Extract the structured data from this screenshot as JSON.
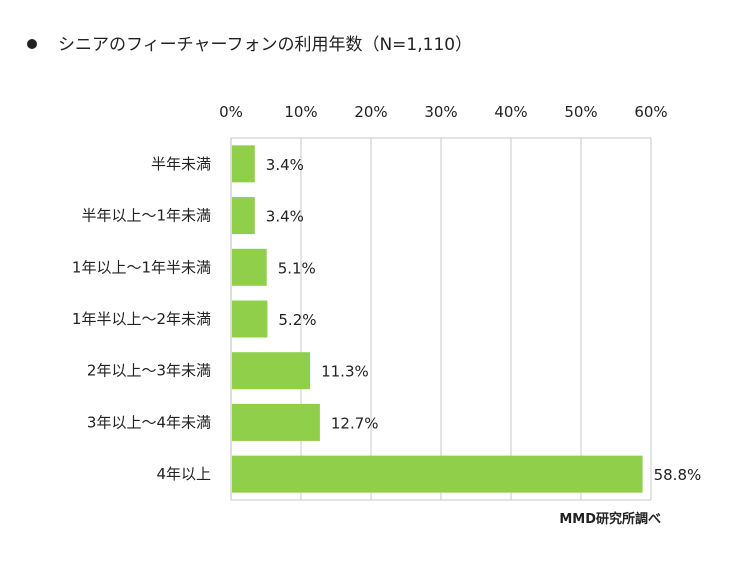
{
  "title": "シニアのフィーチャーフォンの利用年数（N=1,110）",
  "source": "MMD研究所調べ",
  "colors": {
    "bar": "#8fcf4a",
    "grid": "#c8c8c8",
    "axis": "#bdbdbd"
  },
  "chart_data": {
    "type": "bar",
    "orientation": "horizontal",
    "title": "シニアのフィーチャーフォンの利用年数（N=1,110）",
    "categories": [
      "半年未満",
      "半年以上～1年未満",
      "1年以上～1年半未満",
      "1年半以上～2年未満",
      "2年以上～3年未満",
      "3年以上～4年未満",
      "4年以上"
    ],
    "values": [
      3.4,
      3.4,
      5.1,
      5.2,
      11.3,
      12.7,
      58.8
    ],
    "value_labels": [
      "3.4%",
      "3.4%",
      "5.1%",
      "5.2%",
      "11.3%",
      "12.7%",
      "58.8%"
    ],
    "xticks": [
      "0%",
      "10%",
      "20%",
      "30%",
      "40%",
      "50%",
      "60%"
    ],
    "xlim": [
      0,
      60
    ],
    "xaxis_position": "top",
    "grid": true,
    "legend": "none"
  }
}
